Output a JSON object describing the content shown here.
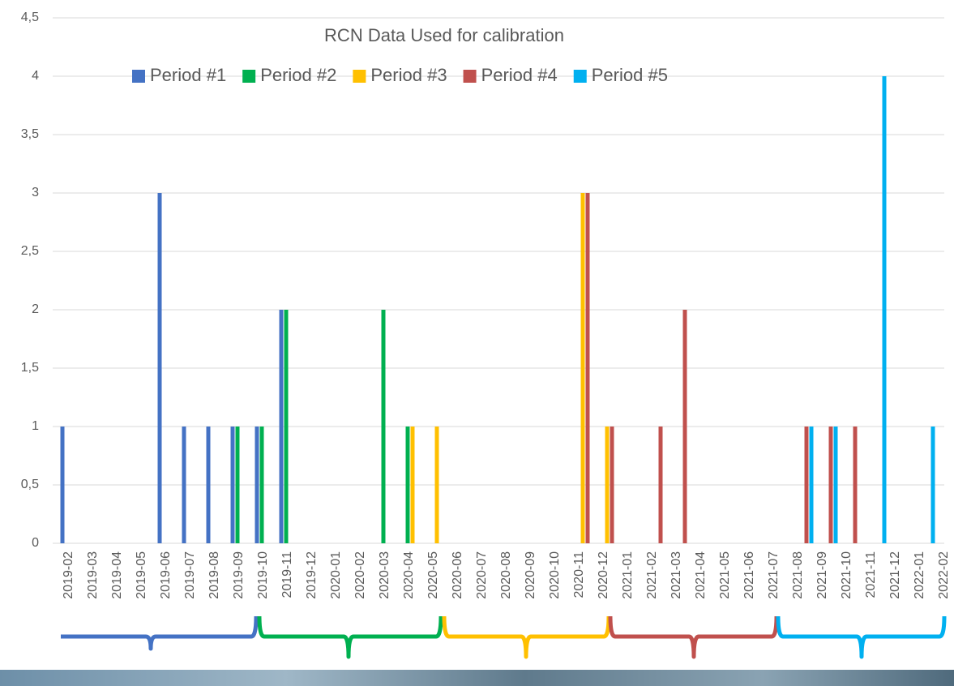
{
  "chart_data": {
    "type": "bar",
    "title": "RCN Data Used for calibration",
    "categories": [
      "2019-02",
      "2019-03",
      "2019-04",
      "2019-05",
      "2019-06",
      "2019-07",
      "2019-08",
      "2019-09",
      "2019-10",
      "2019-11",
      "2019-12",
      "2020-01",
      "2020-02",
      "2020-03",
      "2020-04",
      "2020-05",
      "2020-06",
      "2020-07",
      "2020-08",
      "2020-09",
      "2020-10",
      "2020-11",
      "2020-12",
      "2021-01",
      "2021-02",
      "2021-03",
      "2021-04",
      "2021-05",
      "2021-06",
      "2021-07",
      "2021-08",
      "2021-09",
      "2021-10",
      "2021-11",
      "2021-12",
      "2022-01",
      "2022-02"
    ],
    "series": [
      {
        "name": "Period #1",
        "color": "#4472c4",
        "values": [
          1,
          0,
          0,
          0,
          3,
          1,
          1,
          1,
          1,
          2,
          0,
          0,
          0,
          0,
          0,
          0,
          0,
          0,
          0,
          0,
          0,
          0,
          0,
          0,
          0,
          0,
          0,
          0,
          0,
          0,
          0,
          0,
          0,
          0,
          0,
          0,
          0
        ]
      },
      {
        "name": "Period #2",
        "color": "#00b050",
        "values": [
          0,
          0,
          0,
          0,
          0,
          0,
          0,
          1,
          1,
          2,
          0,
          0,
          0,
          2,
          1,
          0,
          0,
          0,
          0,
          0,
          0,
          0,
          0,
          0,
          0,
          0,
          0,
          0,
          0,
          0,
          0,
          0,
          0,
          0,
          0,
          0,
          0
        ]
      },
      {
        "name": "Period #3",
        "color": "#ffc000",
        "values": [
          0,
          0,
          0,
          0,
          0,
          0,
          0,
          0,
          0,
          0,
          0,
          0,
          0,
          0,
          1,
          1,
          0,
          0,
          0,
          0,
          0,
          3,
          1,
          0,
          0,
          0,
          0,
          0,
          0,
          0,
          0,
          0,
          0,
          0,
          0,
          0,
          0
        ]
      },
      {
        "name": "Period #4",
        "color": "#c0504d",
        "values": [
          0,
          0,
          0,
          0,
          0,
          0,
          0,
          0,
          0,
          0,
          0,
          0,
          0,
          0,
          0,
          0,
          0,
          0,
          0,
          0,
          0,
          3,
          1,
          0,
          1,
          2,
          0,
          0,
          0,
          0,
          1,
          1,
          1,
          0,
          0,
          0,
          0
        ]
      },
      {
        "name": "Period #5",
        "color": "#00b0f0",
        "values": [
          0,
          0,
          0,
          0,
          0,
          0,
          0,
          0,
          0,
          0,
          0,
          0,
          0,
          0,
          0,
          0,
          0,
          0,
          0,
          0,
          0,
          0,
          0,
          0,
          0,
          0,
          0,
          0,
          0,
          0,
          1,
          1,
          0,
          4,
          0,
          1,
          0
        ]
      }
    ],
    "ylim": [
      0,
      4.5
    ],
    "yticks": [
      0,
      {
        "value": 0.5,
        "label": "0,5"
      },
      1,
      {
        "value": 1.5,
        "label": "1,5"
      },
      2,
      {
        "value": 2.5,
        "label": "2,5"
      },
      3,
      {
        "value": 3.5,
        "label": "3,5"
      },
      4,
      {
        "value": 4.5,
        "label": "4,5"
      }
    ],
    "grid": true,
    "legend": "top"
  }
}
